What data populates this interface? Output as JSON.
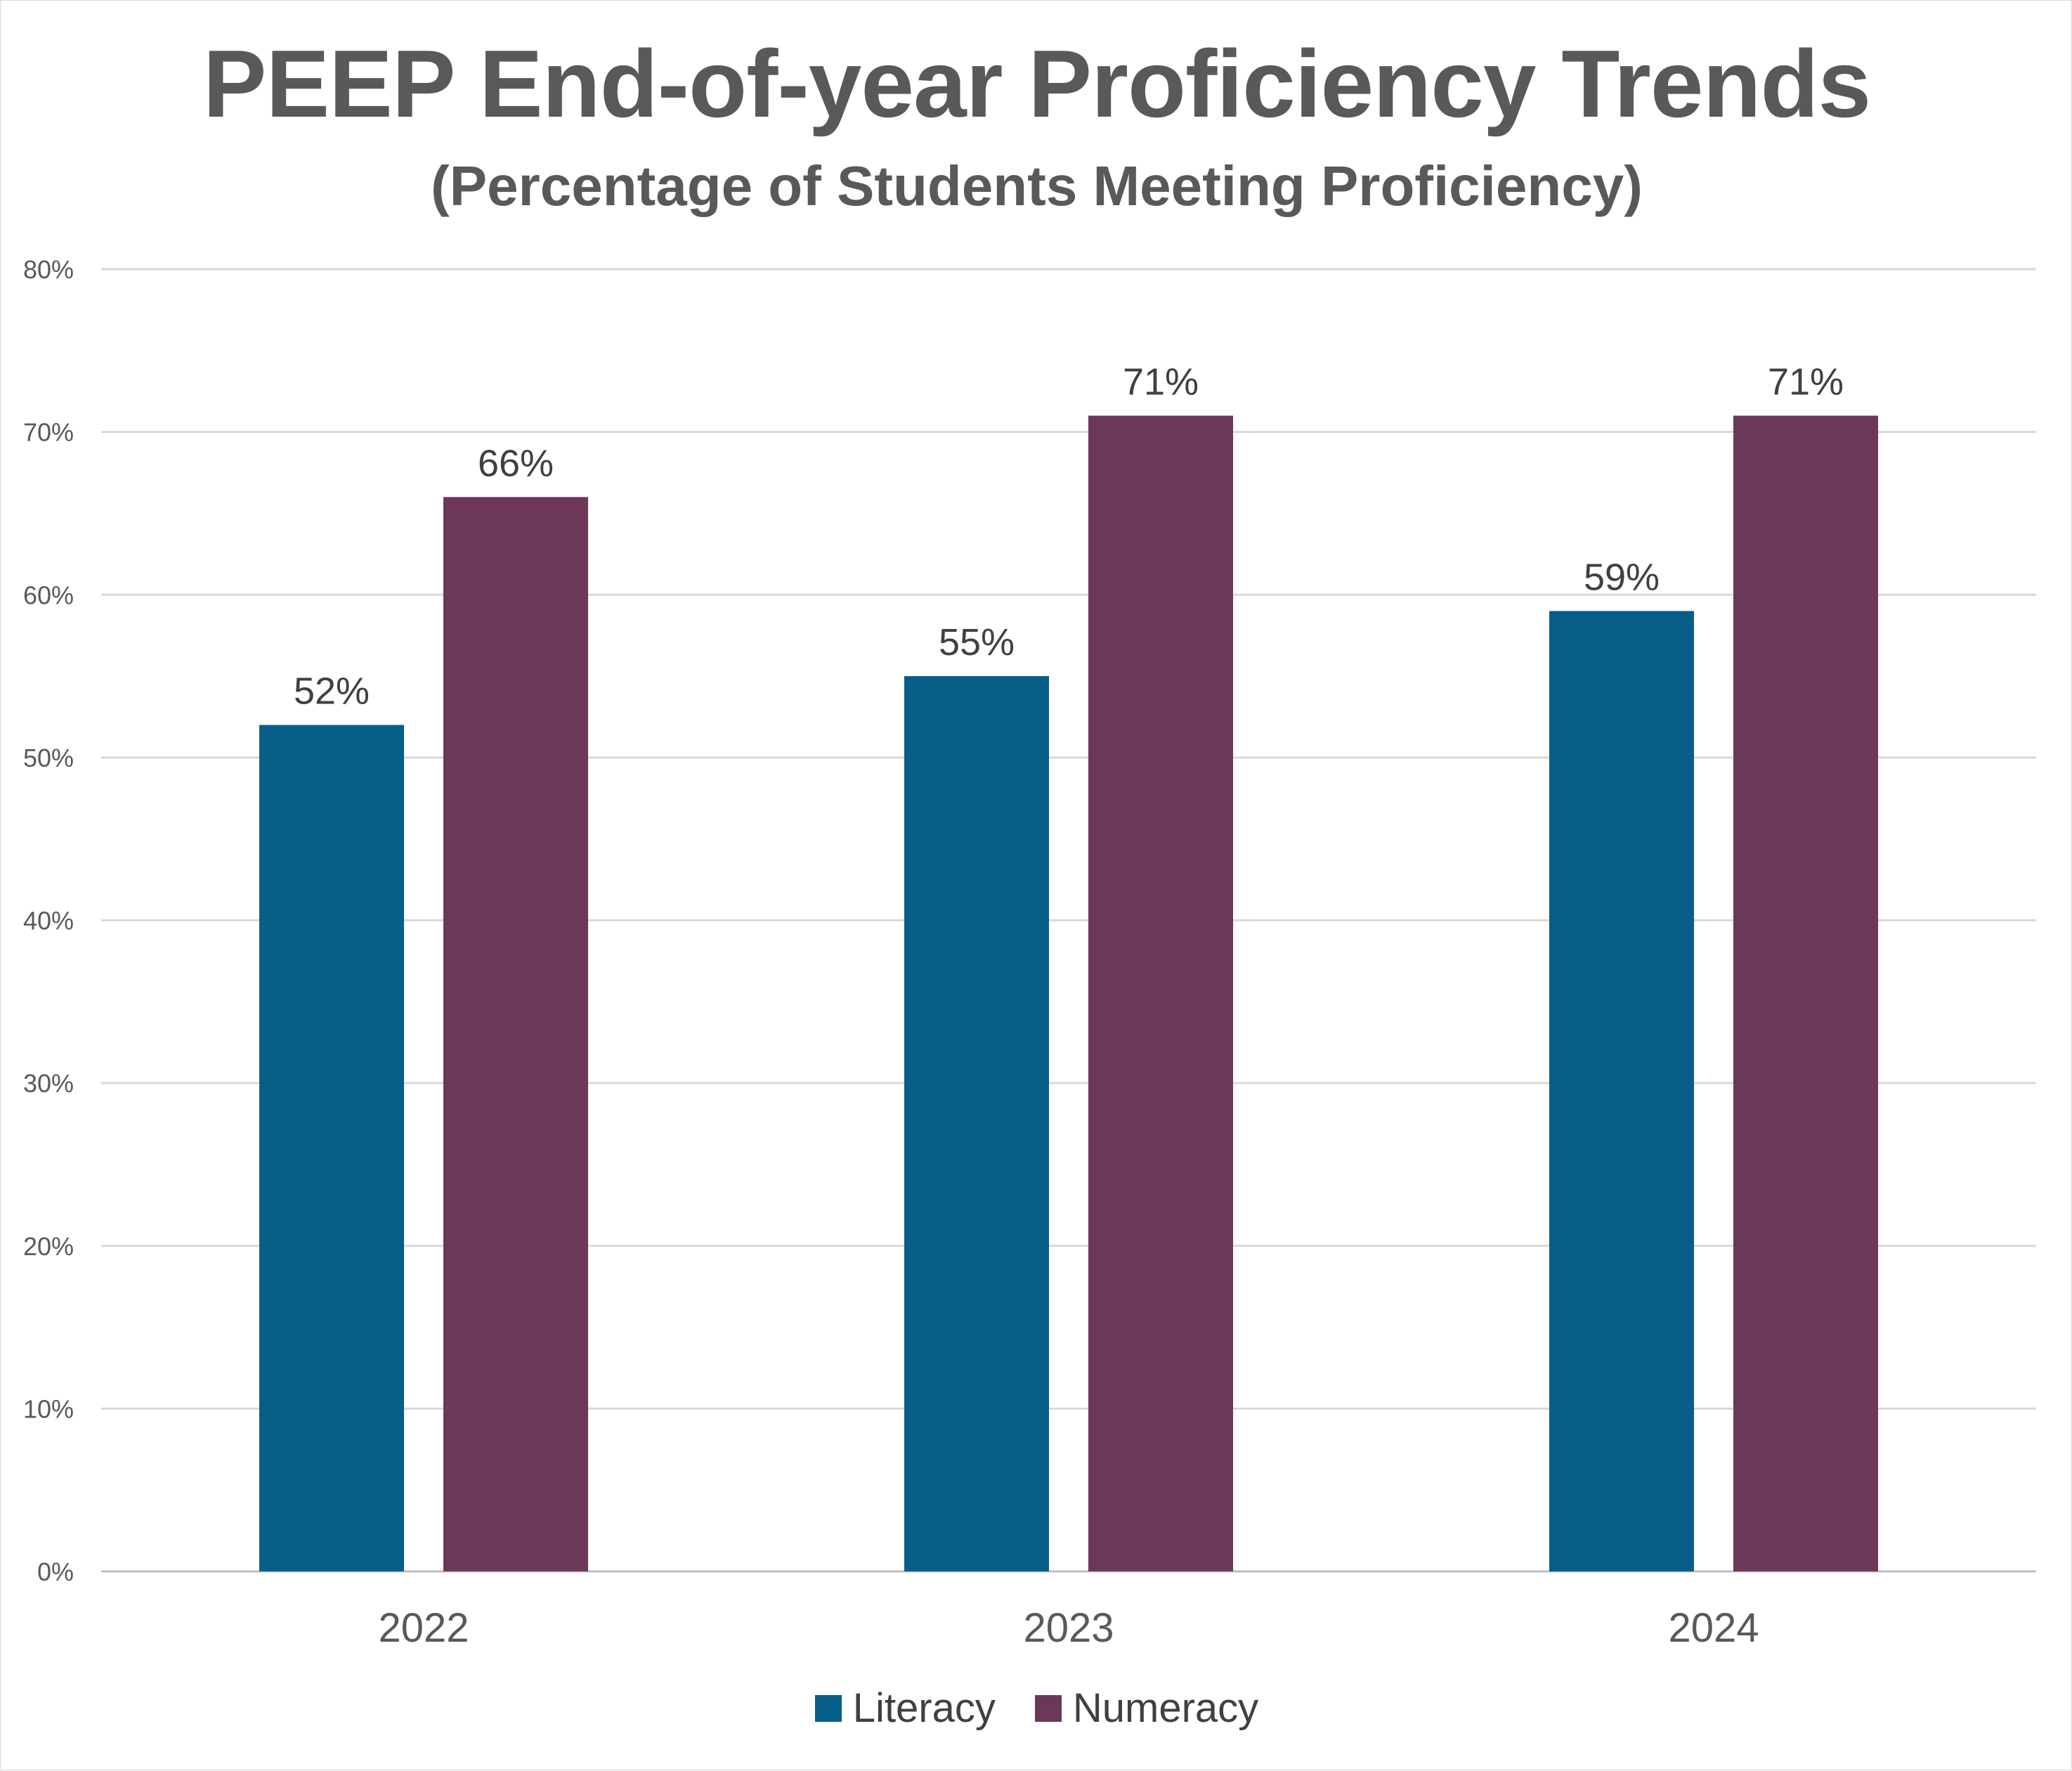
{
  "chart_data": {
    "type": "bar",
    "title": "PEEP End-of-year Proficiency Trends",
    "subtitle": "(Percentage of Students Meeting Proficiency)",
    "categories": [
      "2022",
      "2023",
      "2024"
    ],
    "series": [
      {
        "name": "Literacy",
        "values": [
          52,
          55,
          59
        ],
        "color": "#075E89"
      },
      {
        "name": "Numeracy",
        "values": [
          66,
          71,
          71
        ],
        "color": "#6B3859"
      }
    ],
    "ylim": [
      0,
      80
    ],
    "yticks": [
      0,
      10,
      20,
      30,
      40,
      50,
      60,
      70,
      80
    ],
    "ytick_labels": [
      "0%",
      "10%",
      "20%",
      "30%",
      "40%",
      "50%",
      "60%",
      "70%",
      "80%"
    ],
    "data_labels": [
      [
        "52%",
        "55%",
        "59%"
      ],
      [
        "66%",
        "71%",
        "71%"
      ]
    ],
    "grid": true,
    "legend_position": "bottom"
  }
}
